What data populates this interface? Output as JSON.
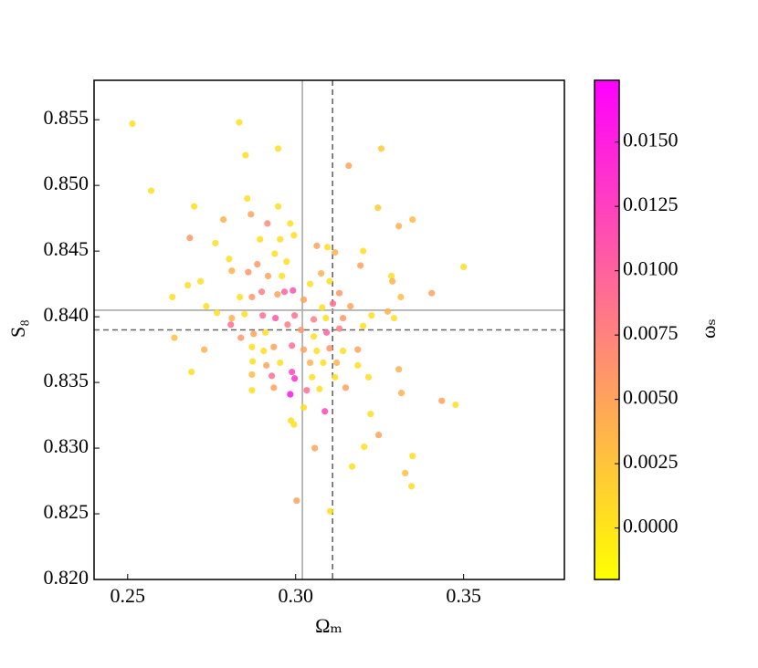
{
  "chart_data": {
    "type": "scatter",
    "xlabel": "Ωₘ",
    "ylabel": "S₈",
    "colorbar_label": "ωₛ",
    "xlim": [
      0.24,
      0.38
    ],
    "ylim": [
      0.82,
      0.858
    ],
    "clim": [
      -0.002,
      0.0174
    ],
    "xticks": [
      {
        "value": 0.25,
        "label": "0.25"
      },
      {
        "value": 0.3,
        "label": "0.30"
      },
      {
        "value": 0.35,
        "label": "0.35"
      }
    ],
    "yticks": [
      {
        "value": 0.82,
        "label": "0.820"
      },
      0.825,
      {
        "value": 0.83,
        "label": "0.830"
      },
      0.835,
      {
        "value": 0.84,
        "label": "0.840"
      },
      0.845,
      {
        "value": 0.85,
        "label": "0.850"
      },
      0.855
    ],
    "cticks": [
      {
        "value": 0,
        "label": "0.0000"
      },
      {
        "value": 0.0025,
        "label": "0.0025"
      },
      {
        "value": 0.005,
        "label": "0.0050"
      },
      {
        "value": 0.0075,
        "label": "0.0075"
      },
      {
        "value": 0.01,
        "label": "0.0100"
      },
      {
        "value": 0.0125,
        "label": "0.0125"
      },
      {
        "value": 0.015,
        "label": "0.0150"
      }
    ],
    "colormap": [
      "#ffff00",
      "#ff00ff"
    ],
    "vlines": [
      {
        "x": 0.302,
        "style": "solid",
        "color": "#aaaaaa"
      },
      {
        "x": 0.311,
        "style": "dashed",
        "color": "#666666"
      }
    ],
    "hlines": [
      {
        "y": 0.8405,
        "style": "solid",
        "color": "#aaaaaa"
      },
      {
        "y": 0.839,
        "style": "dashed",
        "color": "#666666"
      }
    ],
    "series": [
      {
        "x": [
          0.2514,
          0.257,
          0.2832,
          0.2948,
          0.2851,
          0.3255,
          0.3158,
          0.2698,
          0.2856,
          0.2785,
          0.2948,
          0.2867,
          0.2916,
          0.2984,
          0.2995,
          0.2685,
          0.2761,
          0.2894,
          0.2954,
          0.3245,
          0.3348,
          0.3307,
          0.3063,
          0.3095,
          0.3117,
          0.3201,
          0.2633,
          0.2679,
          0.2717,
          0.2802,
          0.281,
          0.2859,
          0.2886,
          0.2938,
          0.2918,
          0.2959,
          0.2973,
          0.2834,
          0.287,
          0.2899,
          0.2946,
          0.2967,
          0.2992,
          0.3024,
          0.3043,
          0.3076,
          0.3101,
          0.313,
          0.3079,
          0.3111,
          0.3163,
          0.3193,
          0.3285,
          0.3288,
          0.3313,
          0.3405,
          0.35,
          0.2734,
          0.2766,
          0.281,
          0.2848,
          0.2902,
          0.294,
          0.2997,
          0.3054,
          0.309,
          0.3141,
          0.3226,
          0.3274,
          0.3293,
          0.2639,
          0.2807,
          0.2837,
          0.2875,
          0.291,
          0.2976,
          0.3016,
          0.3054,
          0.3092,
          0.313,
          0.3201,
          0.2728,
          0.287,
          0.2905,
          0.2935,
          0.2989,
          0.3024,
          0.3063,
          0.3101,
          0.3141,
          0.3185,
          0.2872,
          0.2913,
          0.2954,
          0.2989,
          0.3043,
          0.3082,
          0.3122,
          0.3185,
          0.269,
          0.287,
          0.2929,
          0.2997,
          0.3049,
          0.3117,
          0.3217,
          0.3307,
          0.287,
          0.2935,
          0.2984,
          0.3033,
          0.3071,
          0.3149,
          0.3315,
          0.3435,
          0.3476,
          0.3024,
          0.3087,
          0.3223,
          0.2986,
          0.2995,
          0.3247,
          0.3057,
          0.3204,
          0.3348,
          0.3168,
          0.3326,
          0.3345,
          0.3003,
          0.3103
        ],
        "y": [
          0.8547,
          0.8496,
          0.8548,
          0.8528,
          0.8523,
          0.8528,
          0.8515,
          0.8484,
          0.849,
          0.8474,
          0.8484,
          0.8478,
          0.8471,
          0.8471,
          0.8462,
          0.846,
          0.8456,
          0.8459,
          0.8459,
          0.8483,
          0.8474,
          0.8469,
          0.8454,
          0.8453,
          0.8449,
          0.845,
          0.8415,
          0.8424,
          0.8427,
          0.8444,
          0.8435,
          0.8434,
          0.844,
          0.8448,
          0.8431,
          0.8431,
          0.8442,
          0.8415,
          0.8415,
          0.8419,
          0.8417,
          0.8419,
          0.842,
          0.8413,
          0.8425,
          0.8433,
          0.8427,
          0.8418,
          0.8407,
          0.841,
          0.8408,
          0.8439,
          0.8431,
          0.8427,
          0.8415,
          0.8418,
          0.8438,
          0.8408,
          0.8403,
          0.8399,
          0.8402,
          0.8401,
          0.8399,
          0.8401,
          0.8398,
          0.8399,
          0.8399,
          0.8401,
          0.8404,
          0.8399,
          0.8384,
          0.8394,
          0.8384,
          0.8387,
          0.8388,
          0.8394,
          0.839,
          0.8385,
          0.8388,
          0.8391,
          0.8393,
          0.8375,
          0.8377,
          0.8374,
          0.8377,
          0.8378,
          0.8375,
          0.8374,
          0.8376,
          0.8374,
          0.8375,
          0.8366,
          0.8363,
          0.8365,
          0.8358,
          0.8365,
          0.8365,
          0.8365,
          0.8363,
          0.8358,
          0.8356,
          0.8355,
          0.8353,
          0.8354,
          0.8354,
          0.8354,
          0.836,
          0.8344,
          0.8346,
          0.8341,
          0.8344,
          0.8345,
          0.8346,
          0.8342,
          0.8336,
          0.8333,
          0.8331,
          0.8328,
          0.8326,
          0.8321,
          0.8318,
          0.831,
          0.83,
          0.8301,
          0.8294,
          0.8286,
          0.8281,
          0.8271,
          0.826,
          0.8252
        ],
        "c": [
          0.0005,
          0.0005,
          0.0005,
          0.0005,
          0.0005,
          0.002,
          0.005,
          0.0005,
          0.0005,
          0.004,
          0.0005,
          0.005,
          0.007,
          0.0005,
          0.0005,
          0.006,
          0.0005,
          0.0005,
          0.0005,
          0.002,
          0.003,
          0.004,
          0.005,
          0.0005,
          0.004,
          0.0005,
          0.0005,
          0.0005,
          0.0005,
          0.0005,
          0.004,
          0.006,
          0.006,
          0.0005,
          0.005,
          0.0005,
          0.0005,
          0.0005,
          0.006,
          0.008,
          0.005,
          0.01,
          0.011,
          0.005,
          0.0005,
          0.004,
          0.0005,
          0.006,
          0.0005,
          0.009,
          0.005,
          0.005,
          0.0005,
          0.004,
          0.003,
          0.005,
          0.0005,
          0.0005,
          0.0005,
          0.004,
          0.0005,
          0.009,
          0.011,
          0.009,
          0.008,
          0.0005,
          0.006,
          0.0005,
          0.004,
          0.0005,
          0.003,
          0.009,
          0.006,
          0.005,
          0.0005,
          0.008,
          0.006,
          0.0005,
          0.01,
          0.008,
          0.0005,
          0.004,
          0.0005,
          0.0005,
          0.005,
          0.009,
          0.005,
          0.0005,
          0.006,
          0.0005,
          0.005,
          0.0005,
          0.005,
          0.0005,
          0.012,
          0.004,
          0.0005,
          0.004,
          0.0005,
          0.0005,
          0.003,
          0.009,
          0.014,
          0.0005,
          0.0005,
          0.0005,
          0.004,
          0.0005,
          0.005,
          0.016,
          0.009,
          0.0005,
          0.005,
          0.004,
          0.005,
          0.0005,
          0.0005,
          0.012,
          0.0005,
          0.0005,
          0.0005,
          0.005,
          0.005,
          0.0005,
          0.0005,
          0.0005,
          0.003,
          0.0005,
          0.005,
          0.0005
        ]
      }
    ]
  }
}
